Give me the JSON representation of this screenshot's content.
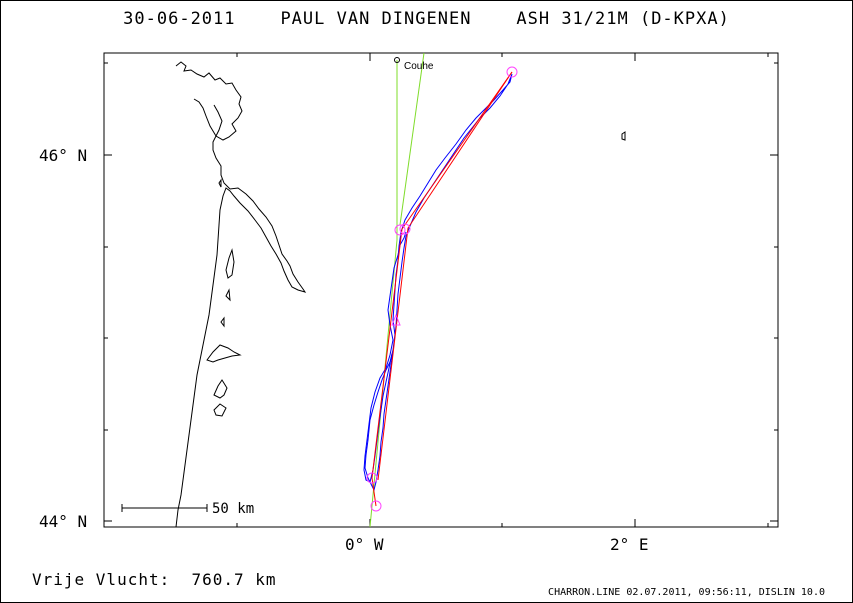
{
  "title": "30-06-2011    PAUL VAN DINGENEN    ASH 31/21M (D-KPXA)",
  "axes": {
    "lat_labels": [
      "46° N",
      "44° N"
    ],
    "lon_labels": [
      "0° W",
      "2° E"
    ]
  },
  "scale_bar": {
    "label": "50 km"
  },
  "place_label": "Couhe",
  "footer": {
    "distance": "Vrije Vlucht:  760.7 km",
    "credit": "CHARRON.LINE 02.07.2011, 09:56:11, DISLIN 10.0"
  },
  "colors": {
    "track": "#0000ff",
    "task_line": "#ff0000",
    "approach_lines": "#7fdc2a",
    "turnpoints": "#ff44ff",
    "coast": "#000000"
  }
}
